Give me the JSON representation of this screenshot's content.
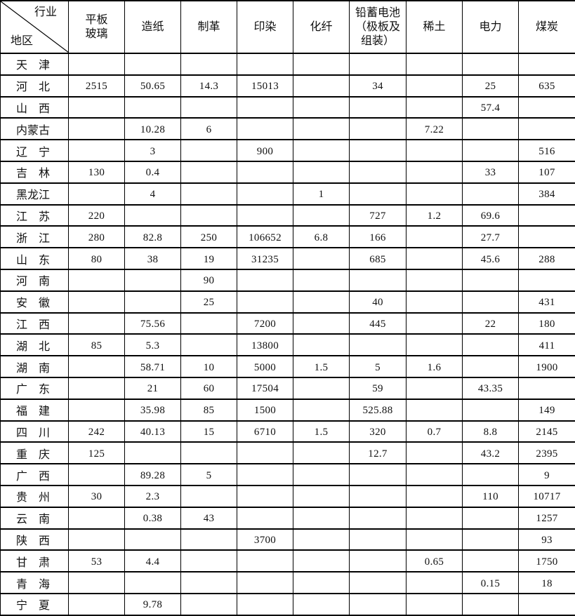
{
  "header": {
    "corner_top": "行业",
    "corner_bottom": "地区",
    "columns": [
      "平板玻璃",
      "造纸",
      "制革",
      "印染",
      "化纤",
      "铅蓄电池（极板及组装）",
      "稀土",
      "电力",
      "煤炭"
    ]
  },
  "rows": [
    {
      "region": "天　津",
      "values": [
        "",
        "",
        "",
        "",
        "",
        "",
        "",
        "",
        ""
      ]
    },
    {
      "region": "河　北",
      "values": [
        "2515",
        "50.65",
        "14.3",
        "15013",
        "",
        "34",
        "",
        "25",
        "635"
      ]
    },
    {
      "region": "山　西",
      "values": [
        "",
        "",
        "",
        "",
        "",
        "",
        "",
        "57.4",
        ""
      ]
    },
    {
      "region": "内蒙古",
      "values": [
        "",
        "10.28",
        "6",
        "",
        "",
        "",
        "7.22",
        "",
        ""
      ]
    },
    {
      "region": "辽　宁",
      "values": [
        "",
        "3",
        "",
        "900",
        "",
        "",
        "",
        "",
        "516"
      ]
    },
    {
      "region": "吉　林",
      "values": [
        "130",
        "0.4",
        "",
        "",
        "",
        "",
        "",
        "33",
        "107"
      ]
    },
    {
      "region": "黑龙江",
      "values": [
        "",
        "4",
        "",
        "",
        "1",
        "",
        "",
        "",
        "384"
      ]
    },
    {
      "region": "江　苏",
      "values": [
        "220",
        "",
        "",
        "",
        "",
        "727",
        "1.2",
        "69.6",
        ""
      ]
    },
    {
      "region": "浙　江",
      "values": [
        "280",
        "82.8",
        "250",
        "106652",
        "6.8",
        "166",
        "",
        "27.7",
        ""
      ]
    },
    {
      "region": "山　东",
      "values": [
        "80",
        "38",
        "19",
        "31235",
        "",
        "685",
        "",
        "45.6",
        "288"
      ]
    },
    {
      "region": "河　南",
      "values": [
        "",
        "",
        "90",
        "",
        "",
        "",
        "",
        "",
        ""
      ]
    },
    {
      "region": "安　徽",
      "values": [
        "",
        "",
        "25",
        "",
        "",
        "40",
        "",
        "",
        "431"
      ]
    },
    {
      "region": "江　西",
      "values": [
        "",
        "75.56",
        "",
        "7200",
        "",
        "445",
        "",
        "22",
        "180"
      ]
    },
    {
      "region": "湖　北",
      "values": [
        "85",
        "5.3",
        "",
        "13800",
        "",
        "",
        "",
        "",
        "411"
      ]
    },
    {
      "region": "湖　南",
      "values": [
        "",
        "58.71",
        "10",
        "5000",
        "1.5",
        "5",
        "1.6",
        "",
        "1900"
      ]
    },
    {
      "region": "广　东",
      "values": [
        "",
        "21",
        "60",
        "17504",
        "",
        "59",
        "",
        "43.35",
        ""
      ]
    },
    {
      "region": "福　建",
      "values": [
        "",
        "35.98",
        "85",
        "1500",
        "",
        "525.88",
        "",
        "",
        "149"
      ]
    },
    {
      "region": "四　川",
      "values": [
        "242",
        "40.13",
        "15",
        "6710",
        "1.5",
        "320",
        "0.7",
        "8.8",
        "2145"
      ]
    },
    {
      "region": "重　庆",
      "values": [
        "125",
        "",
        "",
        "",
        "",
        "12.7",
        "",
        "43.2",
        "2395"
      ]
    },
    {
      "region": "广　西",
      "values": [
        "",
        "89.28",
        "5",
        "",
        "",
        "",
        "",
        "",
        "9"
      ]
    },
    {
      "region": "贵　州",
      "values": [
        "30",
        "2.3",
        "",
        "",
        "",
        "",
        "",
        "110",
        "10717"
      ]
    },
    {
      "region": "云　南",
      "values": [
        "",
        "0.38",
        "43",
        "",
        "",
        "",
        "",
        "",
        "1257"
      ]
    },
    {
      "region": "陕　西",
      "values": [
        "",
        "",
        "",
        "3700",
        "",
        "",
        "",
        "",
        "93"
      ]
    },
    {
      "region": "甘　肃",
      "values": [
        "53",
        "4.4",
        "",
        "",
        "",
        "",
        "0.65",
        "",
        "1750"
      ]
    },
    {
      "region": "青　海",
      "values": [
        "",
        "",
        "",
        "",
        "",
        "",
        "",
        "0.15",
        "18"
      ]
    },
    {
      "region": "宁　夏",
      "values": [
        "",
        "9.78",
        "",
        "",
        "",
        "",
        "",
        "",
        ""
      ]
    }
  ]
}
